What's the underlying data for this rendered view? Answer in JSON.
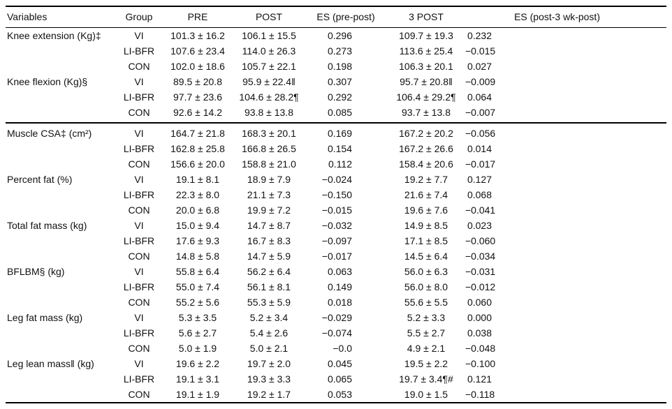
{
  "table": {
    "columns": [
      "Variables",
      "Group",
      "PRE",
      "POST",
      "ES (pre-post)",
      "3 POST",
      "ES (post-3 wk-post)"
    ],
    "sections": [
      {
        "rows": [
          [
            "Knee extension (Kg)‡",
            "VI",
            "101.3 ± 16.2",
            "106.1 ± 15.5",
            "0.296",
            "109.7 ± 19.3",
            "0.232"
          ],
          [
            "",
            "LI-BFR",
            "107.6 ± 23.4",
            "114.0 ± 26.3",
            "0.273",
            "113.6 ± 25.4",
            "−0.015"
          ],
          [
            "",
            "CON",
            "102.0 ± 18.6",
            "105.7 ± 22.1",
            "0.198",
            "106.3 ± 20.1",
            "0.027"
          ],
          [
            "Knee flexion (Kg)§",
            "VI",
            "89.5 ± 20.8",
            "95.9 ± 22.4‖",
            "0.307",
            "95.7 ± 20.8‖",
            "−0.009"
          ],
          [
            "",
            "LI-BFR",
            "97.7 ± 23.6",
            "104.6 ± 28.2¶",
            "0.292",
            "106.4 ± 29.2¶",
            "0.064"
          ],
          [
            "",
            "CON",
            "92.6 ± 14.2",
            "93.8 ± 13.8",
            "0.085",
            "93.7 ± 13.8",
            "−0.007"
          ]
        ]
      },
      {
        "rows": [
          [
            "Muscle CSA‡ (cm²)",
            "VI",
            "164.7 ± 21.8",
            "168.3 ± 20.1",
            "0.169",
            "167.2 ± 20.2",
            "−0.056"
          ],
          [
            "",
            "LI-BFR",
            "162.8 ± 25.8",
            "166.8 ± 26.5",
            "0.154",
            "167.2 ± 26.6",
            "0.014"
          ],
          [
            "",
            "CON",
            "156.6 ± 20.0",
            "158.8 ± 21.0",
            "0.112",
            "158.4 ± 20.6",
            "−0.017"
          ],
          [
            "Percent fat (%)",
            "VI",
            "19.1 ± 8.1",
            "18.9 ± 7.9",
            "−0.024",
            "19.2 ± 7.7",
            "0.127"
          ],
          [
            "",
            "LI-BFR",
            "22.3 ± 8.0",
            "21.1 ± 7.3",
            "−0.150",
            "21.6 ± 7.4",
            "0.068"
          ],
          [
            "",
            "CON",
            "20.0 ± 6.8",
            "19.9 ± 7.2",
            "−0.015",
            "19.6 ± 7.6",
            "−0.041"
          ],
          [
            "Total fat mass (kg)",
            "VI",
            "15.0 ± 9.4",
            "14.7 ± 8.7",
            "−0.032",
            "14.9 ± 8.5",
            "0.023"
          ],
          [
            "",
            "LI-BFR",
            "17.6 ± 9.3",
            "16.7 ± 8.3",
            "−0.097",
            "17.1 ± 8.5",
            "−0.060"
          ],
          [
            "",
            "CON",
            "14.8 ± 5.8",
            "14.7 ± 5.9",
            "−0.017",
            "14.5 ± 6.4",
            "−0.034"
          ],
          [
            "BFLBM§ (kg)",
            "VI",
            "55.8 ± 6.4",
            "56.2 ± 6.4",
            "0.063",
            "56.0 ± 6.3",
            "−0.031"
          ],
          [
            "",
            "LI-BFR",
            "55.0 ± 7.4",
            "56.1 ± 8.1",
            "0.149",
            "56.0 ± 8.0",
            "−0.012"
          ],
          [
            "",
            "CON",
            "55.2 ± 5.6",
            "55.3 ± 5.9",
            "0.018",
            "55.6 ± 5.5",
            "0.060"
          ],
          [
            "Leg fat mass (kg)",
            "VI",
            "5.3 ± 3.5",
            "5.2 ± 3.4",
            "−0.029",
            "5.2 ± 3.3",
            "0.000"
          ],
          [
            "",
            "LI-BFR",
            "5.6 ± 2.7",
            "5.4 ± 2.6",
            "−0.074",
            "5.5 ± 2.7",
            "0.038"
          ],
          [
            "",
            "CON",
            "5.0 ± 1.9",
            "5.0 ± 2.1",
            "−0.0",
            "4.9 ± 2.1",
            "−0.048"
          ],
          [
            "Leg lean mass‖ (kg)",
            "VI",
            "19.6 ± 2.2",
            "19.7 ± 2.0",
            "0.045",
            "19.5 ± 2.2",
            "−0.100"
          ],
          [
            "",
            "LI-BFR",
            "19.1 ± 3.1",
            "19.3 ± 3.3",
            "0.065",
            "19.7 ± 3.4¶#",
            "0.121"
          ],
          [
            "",
            "CON",
            "19.1 ± 1.9",
            "19.2 ± 1.7",
            "0.053",
            "19.0 ± 1.5",
            "−0.118"
          ]
        ]
      }
    ]
  }
}
